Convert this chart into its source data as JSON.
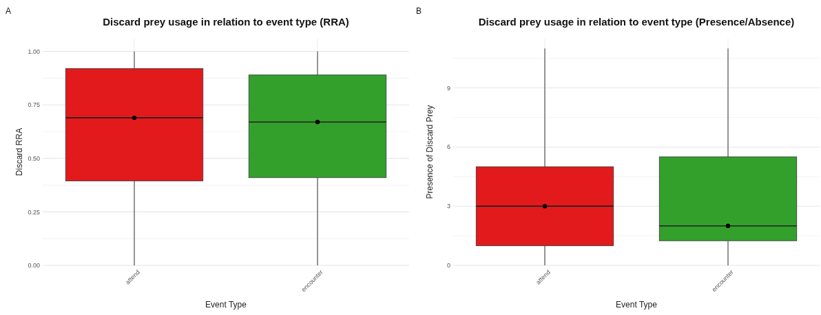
{
  "chart_data": [
    {
      "type": "box",
      "title": "Discard prey usage in relation to event type (RRA)",
      "xlabel": "Event Type",
      "ylabel": "Discard RRA",
      "categories": [
        "attend",
        "encounter"
      ],
      "colors": [
        "#e31a1c",
        "#33a02c"
      ],
      "boxes": [
        {
          "low": 0,
          "q1": 0.395,
          "median": 0.69,
          "q3": 0.92,
          "high": 1,
          "mean": 0.69
        },
        {
          "low": 0,
          "q1": 0.41,
          "median": 0.67,
          "q3": 0.89,
          "high": 1,
          "mean": 0.67
        }
      ],
      "ylim": [
        0,
        1.06
      ],
      "yticks": [
        {
          "value": 0,
          "label": "0.00"
        },
        {
          "value": 0.25,
          "label": "0.25"
        },
        {
          "value": 0.5,
          "label": "0.50"
        },
        {
          "value": 0.75,
          "label": "0.75"
        },
        {
          "value": 1,
          "label": "1.00"
        }
      ],
      "grid": true,
      "annotations": [
        "A"
      ]
    },
    {
      "type": "box",
      "title": "Discard prey usage in relation to event type (Presence/Absence)",
      "xlabel": "Event Type",
      "ylabel": "Presence of Discard Prey",
      "categories": [
        "attend",
        "encounter"
      ],
      "colors": [
        "#e31a1c",
        "#33a02c"
      ],
      "boxes": [
        {
          "low": 0,
          "q1": 1,
          "median": 3,
          "q3": 5,
          "high": 11,
          "mean": 3
        },
        {
          "low": 0,
          "q1": 1.25,
          "median": 2,
          "q3": 5.5,
          "high": 11,
          "mean": 2
        }
      ],
      "ylim": [
        0,
        11.5
      ],
      "yticks": [
        0,
        3,
        6,
        9
      ],
      "grid": true,
      "annotations": [
        "B"
      ]
    }
  ]
}
